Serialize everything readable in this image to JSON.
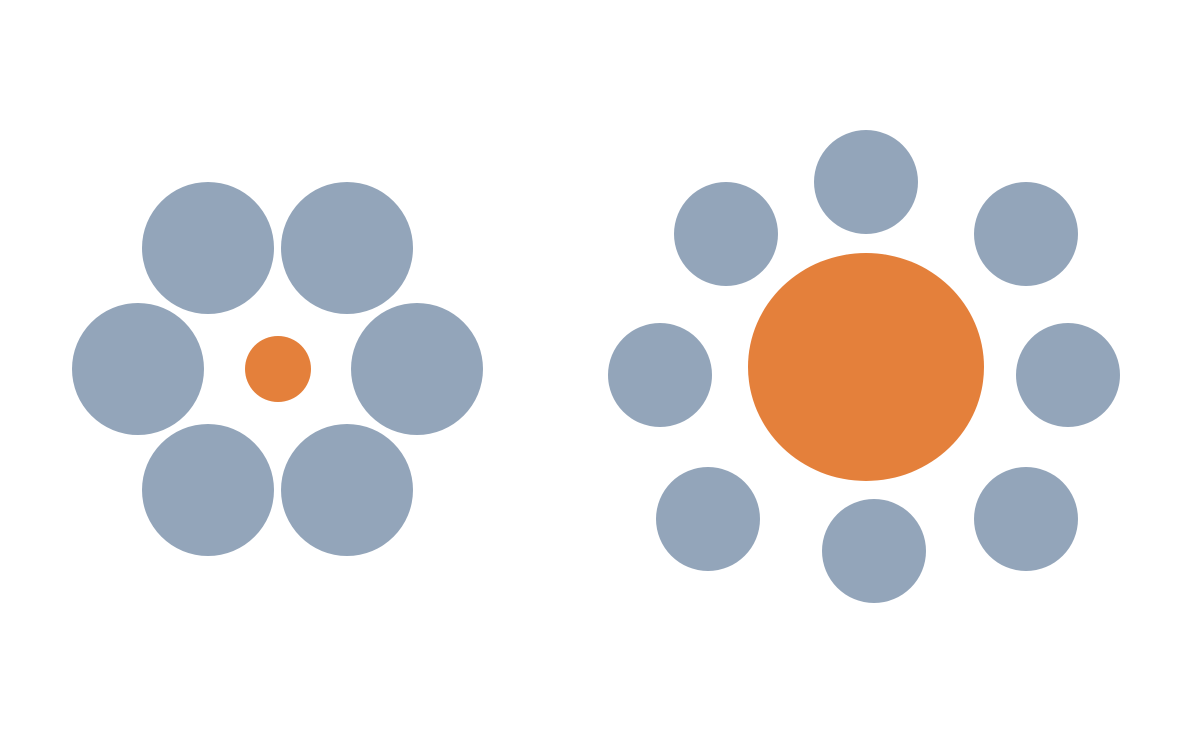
{
  "colors": {
    "background": "#ffffff",
    "surround": "#93a5ba",
    "center": "#e4803b"
  },
  "groups": [
    {
      "id": "left-cluster",
      "center_shape": "circle",
      "surround_count": 6,
      "surround_size": "large",
      "center_size": "small"
    },
    {
      "id": "right-cluster",
      "center_shape": "ellipse",
      "surround_count": 8,
      "surround_size": "small",
      "center_size": "large"
    }
  ]
}
